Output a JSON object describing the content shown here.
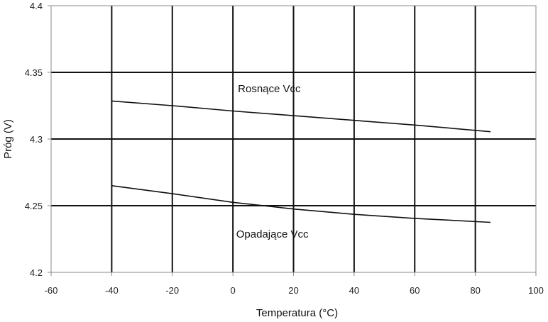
{
  "chart_data": {
    "type": "line",
    "title": "",
    "xlabel": "Temperatura (°C)",
    "ylabel": "Próg (V)",
    "xlim": [
      -60,
      100
    ],
    "ylim": [
      4.2,
      4.4
    ],
    "xticks": [
      -60,
      -40,
      -20,
      0,
      20,
      40,
      60,
      80,
      100
    ],
    "xtick_labels": [
      "-60",
      "-40",
      "-20",
      "0",
      "20",
      "40",
      "60",
      "80",
      "100"
    ],
    "yticks": [
      4.2,
      4.25,
      4.3,
      4.35,
      4.4
    ],
    "ytick_labels": [
      "4.2",
      "4.25",
      "4.3",
      "4.35",
      "4.4"
    ],
    "grid": true,
    "series": [
      {
        "name": "Rosnące Vcc",
        "x": [
          -40,
          -20,
          0,
          20,
          40,
          60,
          85
        ],
        "values": [
          4.3285,
          4.325,
          4.321,
          4.3175,
          4.314,
          4.3105,
          4.3055
        ]
      },
      {
        "name": "Opadające Vcc",
        "x": [
          -40,
          -20,
          0,
          20,
          40,
          60,
          85
        ],
        "values": [
          4.265,
          4.259,
          4.2525,
          4.2475,
          4.2435,
          4.2405,
          4.2375
        ]
      }
    ],
    "annotations": [
      {
        "text": "Rosnące Vcc",
        "x": 12,
        "y": 4.335
      },
      {
        "text": "Opadające Vcc",
        "x": 13,
        "y": 4.226
      }
    ],
    "colors": {
      "line": "#111111",
      "grid": "#111111",
      "frame": "#888888"
    }
  }
}
